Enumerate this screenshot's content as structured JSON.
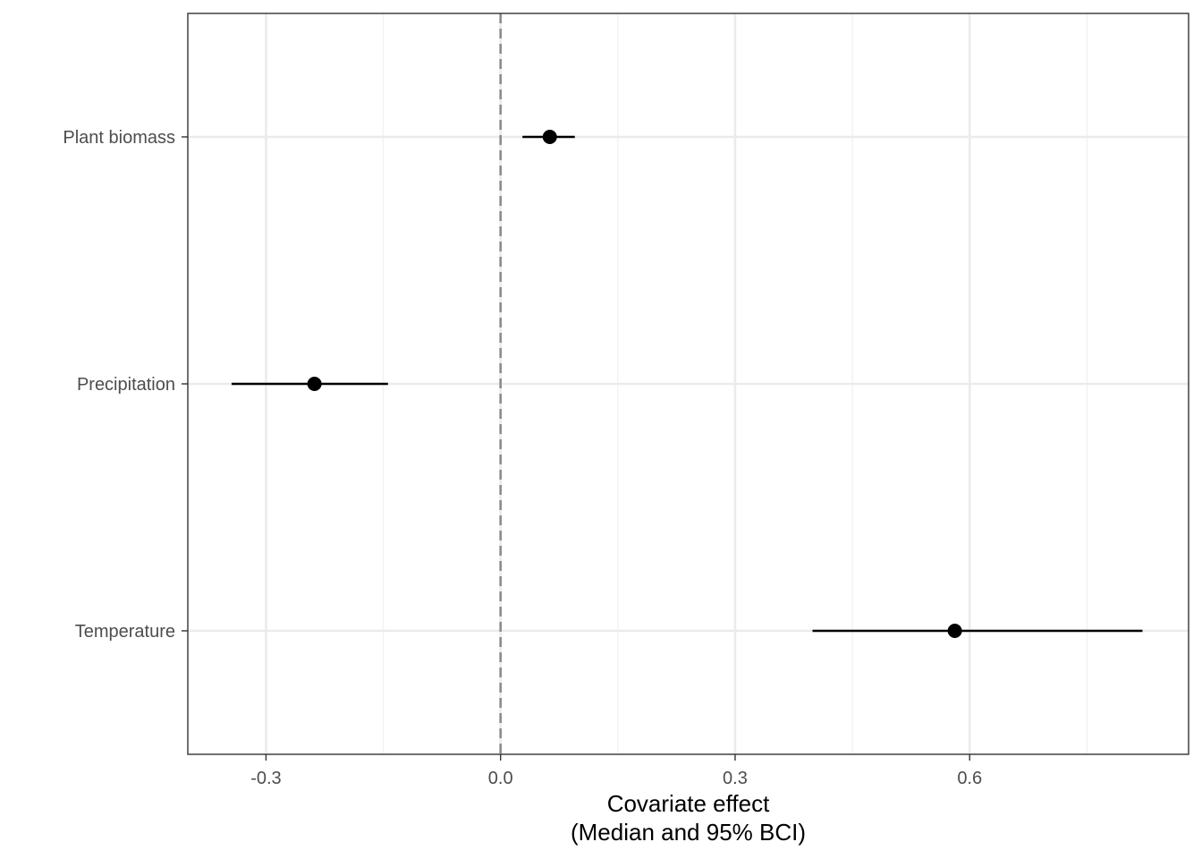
{
  "chart_data": {
    "type": "forest",
    "title": "",
    "xlabel_lines": [
      "Covariate effect",
      "(Median and 95% BCI)"
    ],
    "ylabel": "",
    "xlim": [
      -0.4,
      0.88
    ],
    "x_ticks": [
      -0.3,
      0.0,
      0.3,
      0.6
    ],
    "x_tick_labels": [
      "-0.3",
      "0.0",
      "0.3",
      "0.6"
    ],
    "x_minor_ticks": [
      -0.15,
      0.15,
      0.45,
      0.75
    ],
    "reference_line": {
      "x": 0.0,
      "style": "dashed",
      "color": "#8c8c8c"
    },
    "grid": true,
    "categories": [
      "Plant biomass",
      "Precipitation",
      "Temperature"
    ],
    "series": [
      {
        "points": [
          {
            "label": "Plant biomass",
            "median": 0.063,
            "lower": 0.028,
            "upper": 0.095
          },
          {
            "label": "Precipitation",
            "median": -0.238,
            "lower": -0.344,
            "upper": -0.144
          },
          {
            "label": "Temperature",
            "median": 0.581,
            "lower": 0.399,
            "upper": 0.821
          }
        ]
      }
    ]
  },
  "colors": {
    "point": "#000000",
    "interval": "#000000",
    "grid_major": "#ebebeb",
    "grid_minor": "#f2f2f2",
    "panel_border": "#333333",
    "tick_label": "#4d4d4d"
  }
}
